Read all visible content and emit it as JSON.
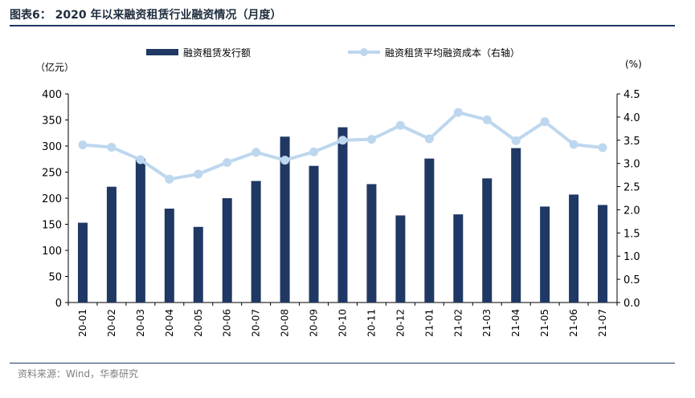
{
  "figure": {
    "title": "图表6：  2020 年以来融资租赁行业融资情况（月度）",
    "source": "资料来源：Wind，华泰研究"
  },
  "colors": {
    "bar": "#1f3864",
    "line": "#bdd7ee"
  },
  "chart_data": {
    "type": "bar",
    "title": "",
    "categories": [
      "20-01",
      "20-02",
      "20-03",
      "20-04",
      "20-05",
      "20-06",
      "20-07",
      "20-08",
      "20-09",
      "20-10",
      "20-11",
      "20-12",
      "21-01",
      "21-02",
      "21-03",
      "21-04",
      "21-05",
      "21-06",
      "21-07"
    ],
    "series": [
      {
        "name": "融资租赁发行额",
        "type": "bar",
        "axis": "left",
        "values": [
          153,
          222,
          276,
          180,
          145,
          200,
          233,
          318,
          262,
          336,
          227,
          167,
          276,
          169,
          238,
          296,
          184,
          207,
          187
        ]
      },
      {
        "name": "融资租赁平均融资成本（右轴）",
        "type": "line",
        "axis": "right",
        "values": [
          3.4,
          3.35,
          3.08,
          2.66,
          2.77,
          3.02,
          3.24,
          3.07,
          3.25,
          3.5,
          3.52,
          3.82,
          3.53,
          4.1,
          3.94,
          3.49,
          3.9,
          3.41,
          3.34
        ]
      }
    ],
    "y_left": {
      "label": "（亿元）",
      "min": 0,
      "max": 400,
      "step": 50,
      "ticks": [
        "0",
        "50",
        "100",
        "150",
        "200",
        "250",
        "300",
        "350",
        "400"
      ]
    },
    "y_right": {
      "label": "(%)",
      "min": 0,
      "max": 4.5,
      "step": 0.5,
      "ticks": [
        "0.0",
        "0.5",
        "1.0",
        "1.5",
        "2.0",
        "2.5",
        "3.0",
        "3.5",
        "4.0",
        "4.5"
      ]
    },
    "grid": false,
    "legend": "top"
  }
}
